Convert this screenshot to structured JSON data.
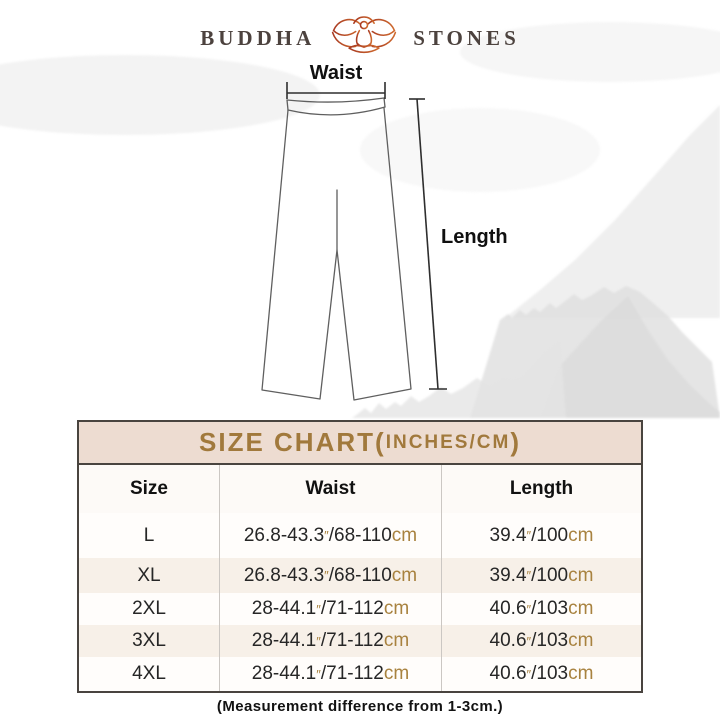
{
  "logo": {
    "left": "BUDDHA",
    "right": "STONES",
    "icon": "lotus-meditation-icon"
  },
  "diagram": {
    "waist_label": "Waist",
    "length_label": "Length"
  },
  "size_chart": {
    "title_segments": [
      {
        "text": "SIZE CHART(",
        "size": "big"
      },
      {
        "text": "INCHES/CM",
        "size": "small"
      },
      {
        "text": ")",
        "size": "big"
      }
    ],
    "columns": [
      "Size",
      "Waist",
      "Length"
    ],
    "rows": [
      {
        "size": "L",
        "striped": false,
        "waist": [
          {
            "t": "26.8-43.3"
          },
          {
            "t": "″",
            "u": true,
            "q": true
          },
          {
            "t": "/68-110"
          },
          {
            "t": "cm",
            "u": true
          }
        ],
        "length": [
          {
            "t": "39.4"
          },
          {
            "t": "″",
            "u": true,
            "q": true
          },
          {
            "t": "/100"
          },
          {
            "t": "cm",
            "u": true
          }
        ]
      },
      {
        "size": "XL",
        "striped": true,
        "waist": [
          {
            "t": "26.8-43.3"
          },
          {
            "t": "″",
            "u": true,
            "q": true
          },
          {
            "t": "/68-110"
          },
          {
            "t": "cm",
            "u": true
          }
        ],
        "length": [
          {
            "t": "39.4"
          },
          {
            "t": "″",
            "u": true,
            "q": true
          },
          {
            "t": "/100"
          },
          {
            "t": "cm",
            "u": true
          }
        ]
      },
      {
        "size": "2XL",
        "striped": false,
        "waist": [
          {
            "t": "28-44.1"
          },
          {
            "t": "″",
            "u": true,
            "q": true
          },
          {
            "t": "/71-112"
          },
          {
            "t": "cm",
            "u": true
          }
        ],
        "length": [
          {
            "t": "40.6"
          },
          {
            "t": "″",
            "u": true,
            "q": true
          },
          {
            "t": "/103"
          },
          {
            "t": "cm",
            "u": true
          }
        ]
      },
      {
        "size": "3XL",
        "striped": true,
        "waist": [
          {
            "t": "28-44.1"
          },
          {
            "t": "″",
            "u": true,
            "q": true
          },
          {
            "t": "/71-112"
          },
          {
            "t": "cm",
            "u": true
          }
        ],
        "length": [
          {
            "t": "40.6"
          },
          {
            "t": "″",
            "u": true,
            "q": true
          },
          {
            "t": "/103"
          },
          {
            "t": "cm",
            "u": true
          }
        ]
      },
      {
        "size": "4XL",
        "striped": false,
        "waist": [
          {
            "t": "28-44.1"
          },
          {
            "t": "″",
            "u": true,
            "q": true
          },
          {
            "t": "/71-112"
          },
          {
            "t": "cm",
            "u": true
          }
        ],
        "length": [
          {
            "t": "40.6"
          },
          {
            "t": "″",
            "u": true,
            "q": true
          },
          {
            "t": "/103"
          },
          {
            "t": "cm",
            "u": true
          }
        ]
      }
    ],
    "note": "(Measurement difference from 1-3cm.)"
  },
  "colors": {
    "accent_brown": "#a8823f",
    "title_text": "#a1793c",
    "title_bar_bg": "#eddcd1",
    "stripe_bg": "#f7f0e8",
    "border_dark": "#49443f",
    "logo_text": "#4c423e",
    "lotus_red": "#a83a22",
    "lotus_orange": "#cf6a2e"
  },
  "chart_data": {
    "type": "table",
    "title": "SIZE CHART(INCHES/CM)",
    "columns": [
      "Size",
      "Waist",
      "Length"
    ],
    "rows": [
      [
        "L",
        "26.8-43.3\"/68-110cm",
        "39.4\"/100cm"
      ],
      [
        "XL",
        "26.8-43.3\"/68-110cm",
        "39.4\"/100cm"
      ],
      [
        "2XL",
        "28-44.1\"/71-112cm",
        "40.6\"/103cm"
      ],
      [
        "3XL",
        "28-44.1\"/71-112cm",
        "40.6\"/103cm"
      ],
      [
        "4XL",
        "28-44.1\"/71-112cm",
        "40.6\"/103cm"
      ]
    ],
    "note": "(Measurement difference from 1-3cm.)"
  }
}
